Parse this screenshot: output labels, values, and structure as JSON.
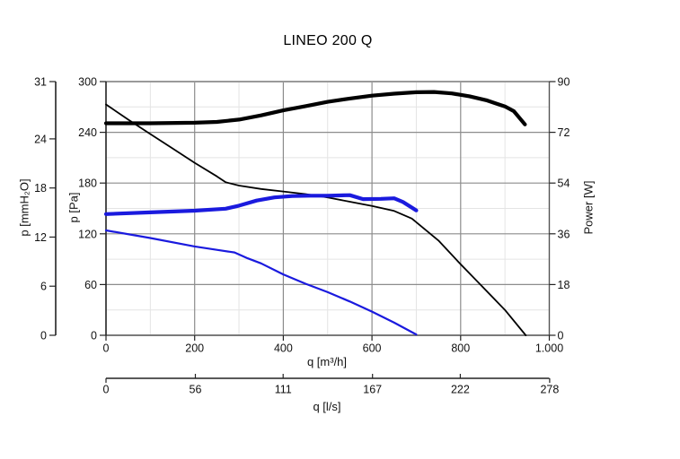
{
  "chart_data": {
    "type": "line",
    "title": "LINEO 200 Q",
    "grid": {
      "major_color": "#8c8c8c",
      "minor_color": "#e4e4e4",
      "border_top_color": "#9a9a9a",
      "border_bottom_color": "#7a7a7a",
      "axis_color": "#222222"
    },
    "axes": {
      "x_primary": {
        "label": "q [m³/h]",
        "min": 0,
        "max": 1000,
        "ticks": [
          0,
          200,
          400,
          600,
          800,
          1000
        ],
        "tick_labels": [
          "0",
          "200",
          "400",
          "600",
          "800",
          "1.000"
        ],
        "minor_step": 100
      },
      "x_secondary": {
        "label": "q [l/s]",
        "min": 0,
        "max": 278,
        "ticks": [
          0,
          56,
          111,
          167,
          222,
          278
        ],
        "tick_labels": [
          "0",
          "56",
          "111",
          "167",
          "222",
          "278"
        ],
        "unit_conversion_to_primary": 3.6
      },
      "y_pa": {
        "label": "p [Pa]",
        "min": 0,
        "max": 300,
        "ticks": [
          0,
          60,
          120,
          180,
          240,
          300
        ],
        "tick_labels": [
          "0",
          "60",
          "120",
          "180",
          "240",
          "300"
        ],
        "minor_step": 30
      },
      "y_mmh2o": {
        "label": "p [mmH₂O]",
        "min": 0,
        "max": 31,
        "ticks": [
          0,
          6,
          12,
          18,
          24,
          31
        ],
        "tick_labels": [
          "0",
          "6",
          "12",
          "18",
          "24",
          "31"
        ]
      },
      "y_power": {
        "label": "Power [W]",
        "min": 0,
        "max": 90,
        "ticks": [
          0,
          18,
          36,
          54,
          72,
          90
        ],
        "tick_labels": [
          "0",
          "18",
          "36",
          "54",
          "72",
          "90"
        ]
      }
    },
    "series": [
      {
        "name": "pressure-high-speed",
        "style": "thin-black",
        "color": "#000000",
        "width": 1.8,
        "y_axis": "y_pa",
        "points": [
          [
            0,
            273
          ],
          [
            50,
            255
          ],
          [
            100,
            238
          ],
          [
            150,
            221
          ],
          [
            200,
            204
          ],
          [
            250,
            188
          ],
          [
            270,
            181
          ],
          [
            300,
            177
          ],
          [
            350,
            173
          ],
          [
            400,
            170
          ],
          [
            450,
            167
          ],
          [
            500,
            163
          ],
          [
            550,
            158
          ],
          [
            600,
            153
          ],
          [
            650,
            147
          ],
          [
            690,
            138
          ],
          [
            750,
            112
          ],
          [
            800,
            84
          ],
          [
            850,
            57
          ],
          [
            900,
            30
          ],
          [
            947,
            0
          ]
        ]
      },
      {
        "name": "power-high-speed",
        "style": "thick-black",
        "color": "#000000",
        "width": 4.2,
        "y_axis": "y_power",
        "points": [
          [
            0,
            75.2
          ],
          [
            100,
            75.2
          ],
          [
            200,
            75.4
          ],
          [
            250,
            75.7
          ],
          [
            300,
            76.5
          ],
          [
            350,
            78
          ],
          [
            400,
            79.8
          ],
          [
            450,
            81.3
          ],
          [
            500,
            82.8
          ],
          [
            550,
            84
          ],
          [
            600,
            85
          ],
          [
            650,
            85.7
          ],
          [
            700,
            86.2
          ],
          [
            740,
            86.3
          ],
          [
            780,
            85.8
          ],
          [
            820,
            84.8
          ],
          [
            860,
            83.3
          ],
          [
            880,
            82.2
          ],
          [
            900,
            81.2
          ],
          [
            920,
            79.5
          ],
          [
            945,
            74.8
          ]
        ]
      },
      {
        "name": "pressure-low-speed",
        "style": "thin-blue",
        "color": "#1a1ade",
        "width": 2.2,
        "y_axis": "y_pa",
        "points": [
          [
            0,
            124
          ],
          [
            100,
            115
          ],
          [
            200,
            105
          ],
          [
            250,
            101
          ],
          [
            290,
            98
          ],
          [
            320,
            91
          ],
          [
            350,
            85
          ],
          [
            400,
            72
          ],
          [
            450,
            61
          ],
          [
            500,
            51
          ],
          [
            550,
            40
          ],
          [
            600,
            28
          ],
          [
            650,
            15
          ],
          [
            700,
            1
          ]
        ]
      },
      {
        "name": "power-low-speed",
        "style": "thick-blue",
        "color": "#1a1ade",
        "width": 4.2,
        "y_axis": "y_power",
        "points": [
          [
            0,
            43
          ],
          [
            100,
            43.6
          ],
          [
            200,
            44.2
          ],
          [
            270,
            44.9
          ],
          [
            300,
            46
          ],
          [
            340,
            47.8
          ],
          [
            380,
            48.9
          ],
          [
            420,
            49.4
          ],
          [
            460,
            49.5
          ],
          [
            500,
            49.5
          ],
          [
            550,
            49.7
          ],
          [
            580,
            48.3
          ],
          [
            620,
            48.4
          ],
          [
            650,
            48.6
          ],
          [
            670,
            47.3
          ],
          [
            700,
            44.3
          ]
        ]
      }
    ]
  }
}
